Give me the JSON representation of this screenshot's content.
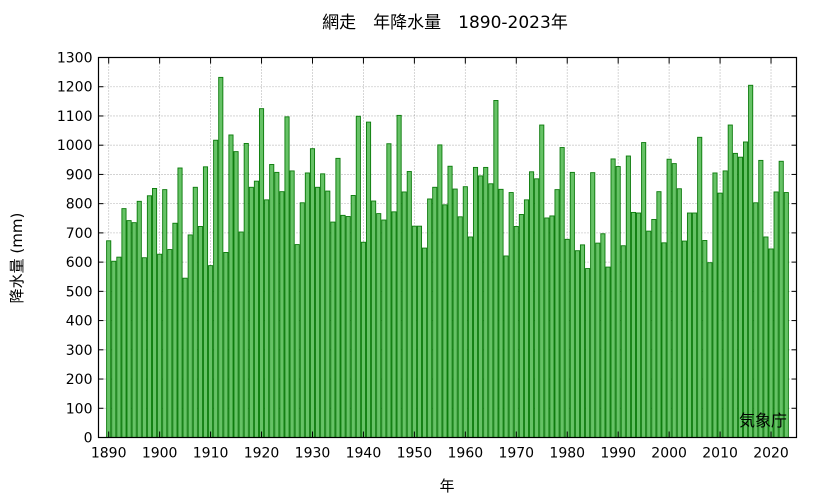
{
  "chart_data": {
    "type": "bar",
    "title": "網走　年降水量　1890-2023年",
    "xlabel": "年",
    "ylabel": "降水量 (mm)",
    "source_note": "気象庁",
    "ylim": [
      0,
      1300
    ],
    "yticks": [
      0,
      100,
      200,
      300,
      400,
      500,
      600,
      700,
      800,
      900,
      1000,
      1100,
      1200,
      1300
    ],
    "xlim": [
      1888,
      2025
    ],
    "xticks": [
      1890,
      1900,
      1910,
      1920,
      1930,
      1940,
      1950,
      1960,
      1970,
      1980,
      1990,
      2000,
      2010,
      2020
    ],
    "grid": true,
    "bar_color": "#66c266",
    "bar_edge_color": "#0a7a0a",
    "start_year": 1890,
    "values": [
      673,
      603,
      617,
      783,
      742,
      735,
      808,
      615,
      827,
      852,
      627,
      848,
      643,
      733,
      922,
      545,
      693,
      856,
      722,
      926,
      588,
      1017,
      1232,
      633,
      1035,
      978,
      703,
      1006,
      856,
      877,
      1125,
      813,
      934,
      907,
      841,
      1097,
      912,
      660,
      803,
      905,
      988,
      856,
      902,
      843,
      737,
      955,
      760,
      756,
      828,
      1099,
      668,
      1079,
      809,
      766,
      744,
      1005,
      772,
      1102,
      840,
      910,
      723,
      723,
      648,
      816,
      856,
      1001,
      796,
      928,
      850,
      755,
      858,
      686,
      924,
      895,
      924,
      868,
      1153,
      849,
      621,
      838,
      722,
      763,
      813,
      909,
      885,
      1069,
      751,
      758,
      848,
      992,
      678,
      907,
      639,
      659,
      578,
      906,
      665,
      697,
      583,
      953,
      927,
      656,
      963,
      770,
      768,
      1009,
      706,
      746,
      841,
      666,
      952,
      937,
      851,
      672,
      768,
      768,
      1027,
      674,
      598,
      905,
      836,
      912,
      1069,
      972,
      959,
      1011,
      1205,
      803,
      948,
      686,
      645,
      840,
      945,
      838
    ]
  }
}
